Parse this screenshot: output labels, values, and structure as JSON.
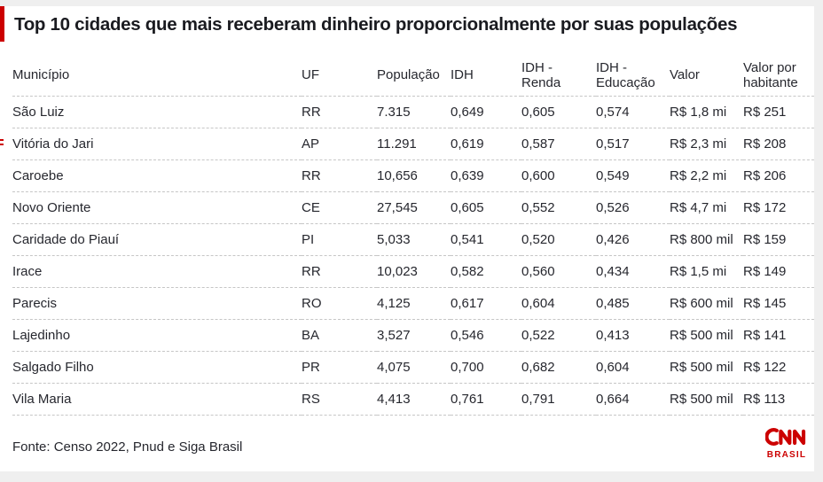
{
  "title": "Top 10 cidades que mais receberam dinheiro proporcionalmente por suas populações",
  "source": "Fonte: Censo 2022, Pnud e Siga Brasil",
  "logo": {
    "brand": "CNN",
    "sub": "BRASIL"
  },
  "colors": {
    "accent_red": "#cc0000",
    "text": "#26272e",
    "title_text": "#1a1b20",
    "divider": "#c6c6c6",
    "card_background": "#ffffff",
    "page_background": "#efefef"
  },
  "chart_data": {
    "type": "table",
    "title": "Top 10 cidades que mais receberam dinheiro proporcionalmente por suas populações",
    "columns": [
      "Município",
      "UF",
      "População",
      "IDH",
      "IDH - Renda",
      "IDH - Educação",
      "Valor",
      "Valor por habitante"
    ],
    "rows": [
      [
        "São Luiz",
        "RR",
        "7.315",
        "0,649",
        "0,605",
        "0,574",
        "R$ 1,8 mi",
        "R$ 251"
      ],
      [
        "Vitória do Jari",
        "AP",
        "11.291",
        "0,619",
        "0,587",
        "0,517",
        "R$ 2,3 mi",
        "R$ 208"
      ],
      [
        "Caroebe",
        "RR",
        "10,656",
        "0,639",
        "0,600",
        "0,549",
        "R$ 2,2 mi",
        "R$ 206"
      ],
      [
        "Novo Oriente",
        "CE",
        "27,545",
        "0,605",
        "0,552",
        "0,526",
        "R$ 4,7 mi",
        "R$ 172"
      ],
      [
        "Caridade do Piauí",
        "PI",
        "5,033",
        "0,541",
        "0,520",
        "0,426",
        "R$ 800 mil",
        "R$ 159"
      ],
      [
        "Irace",
        "RR",
        "10,023",
        "0,582",
        "0,560",
        "0,434",
        "R$ 1,5 mi",
        "R$ 149"
      ],
      [
        "Parecis",
        "RO",
        "4,125",
        "0,617",
        "0,604",
        "0,485",
        "R$ 600 mil",
        "R$ 145"
      ],
      [
        "Lajedinho",
        "BA",
        "3,527",
        "0,546",
        "0,522",
        "0,413",
        "R$ 500 mil",
        "R$ 141"
      ],
      [
        "Salgado Filho",
        "PR",
        "4,075",
        "0,700",
        "0,682",
        "0,604",
        "R$ 500 mil",
        "R$ 122"
      ],
      [
        "Vila Maria",
        "RS",
        "4,413",
        "0,761",
        "0,791",
        "0,664",
        "R$ 500 mil",
        "R$ 113"
      ]
    ]
  }
}
